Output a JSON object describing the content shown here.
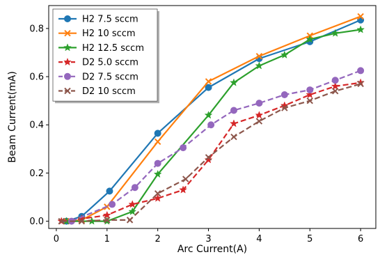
{
  "chart_data": {
    "type": "line",
    "xlabel": "Arc Current(A)",
    "ylabel": "Beam Current(mA)",
    "xlim": [
      -0.15,
      6.3
    ],
    "ylim": [
      -0.03,
      0.895
    ],
    "xticks": [
      0,
      1,
      2,
      3,
      4,
      5,
      6
    ],
    "xtick_labels": [
      "0",
      "1",
      "2",
      "3",
      "4",
      "5",
      "6"
    ],
    "yticks": [
      0.0,
      0.2,
      0.4,
      0.6,
      0.8
    ],
    "ytick_labels": [
      "0.0",
      "0.2",
      "0.4",
      "0.6",
      "0.8"
    ],
    "grid": false,
    "legend_position": "top-left",
    "series": [
      {
        "name": "H2 7.5 sccm",
        "color": "#1f77b4",
        "marker": "circle",
        "dash": "solid",
        "x": [
          0.2,
          0.5,
          1.05,
          2.0,
          3.0,
          4.0,
          5.0,
          6.0
        ],
        "y": [
          0.0,
          0.02,
          0.125,
          0.365,
          0.555,
          0.675,
          0.745,
          0.835
        ]
      },
      {
        "name": "H2 10 sccm",
        "color": "#ff7f0e",
        "marker": "x",
        "dash": "solid",
        "x": [
          0.2,
          0.5,
          1.0,
          2.0,
          3.0,
          4.0,
          5.0,
          6.0
        ],
        "y": [
          0.0,
          0.005,
          0.06,
          0.33,
          0.58,
          0.685,
          0.77,
          0.85
        ]
      },
      {
        "name": "H2 12.5 sccm",
        "color": "#2ca02c",
        "marker": "star",
        "dash": "solid",
        "x": [
          0.2,
          0.7,
          1.0,
          1.5,
          2.0,
          3.0,
          3.5,
          4.0,
          4.5,
          5.0,
          5.5,
          6.0
        ],
        "y": [
          0.0,
          0.0,
          0.0,
          0.04,
          0.195,
          0.44,
          0.575,
          0.645,
          0.69,
          0.755,
          0.78,
          0.795
        ]
      },
      {
        "name": "D2 5.0 sccm",
        "color": "#d62728",
        "marker": "star",
        "dash": "dashed",
        "x": [
          0.1,
          0.5,
          1.0,
          1.5,
          2.0,
          2.5,
          3.0,
          3.5,
          4.0,
          4.5,
          5.0,
          5.5,
          6.0
        ],
        "y": [
          0.0,
          0.01,
          0.025,
          0.07,
          0.095,
          0.13,
          0.255,
          0.405,
          0.44,
          0.48,
          0.525,
          0.56,
          0.575
        ]
      },
      {
        "name": "D2 7.5 sccm",
        "color": "#9467bd",
        "marker": "circle",
        "dash": "dashed",
        "x": [
          0.3,
          1.1,
          1.55,
          2.0,
          2.5,
          3.05,
          3.5,
          4.0,
          4.5,
          5.0,
          5.5,
          6.0
        ],
        "y": [
          0.0,
          0.07,
          0.14,
          0.24,
          0.305,
          0.4,
          0.46,
          0.49,
          0.525,
          0.545,
          0.585,
          0.625
        ]
      },
      {
        "name": "D2 10  sccm",
        "color": "#8c564b",
        "marker": "x",
        "dash": "dashed",
        "x": [
          0.1,
          0.5,
          1.0,
          1.45,
          2.0,
          2.55,
          3.0,
          3.5,
          4.0,
          4.5,
          5.0,
          5.5,
          6.0
        ],
        "y": [
          0.0,
          0.0,
          0.005,
          0.005,
          0.115,
          0.175,
          0.265,
          0.35,
          0.415,
          0.47,
          0.5,
          0.54,
          0.57
        ]
      }
    ]
  }
}
